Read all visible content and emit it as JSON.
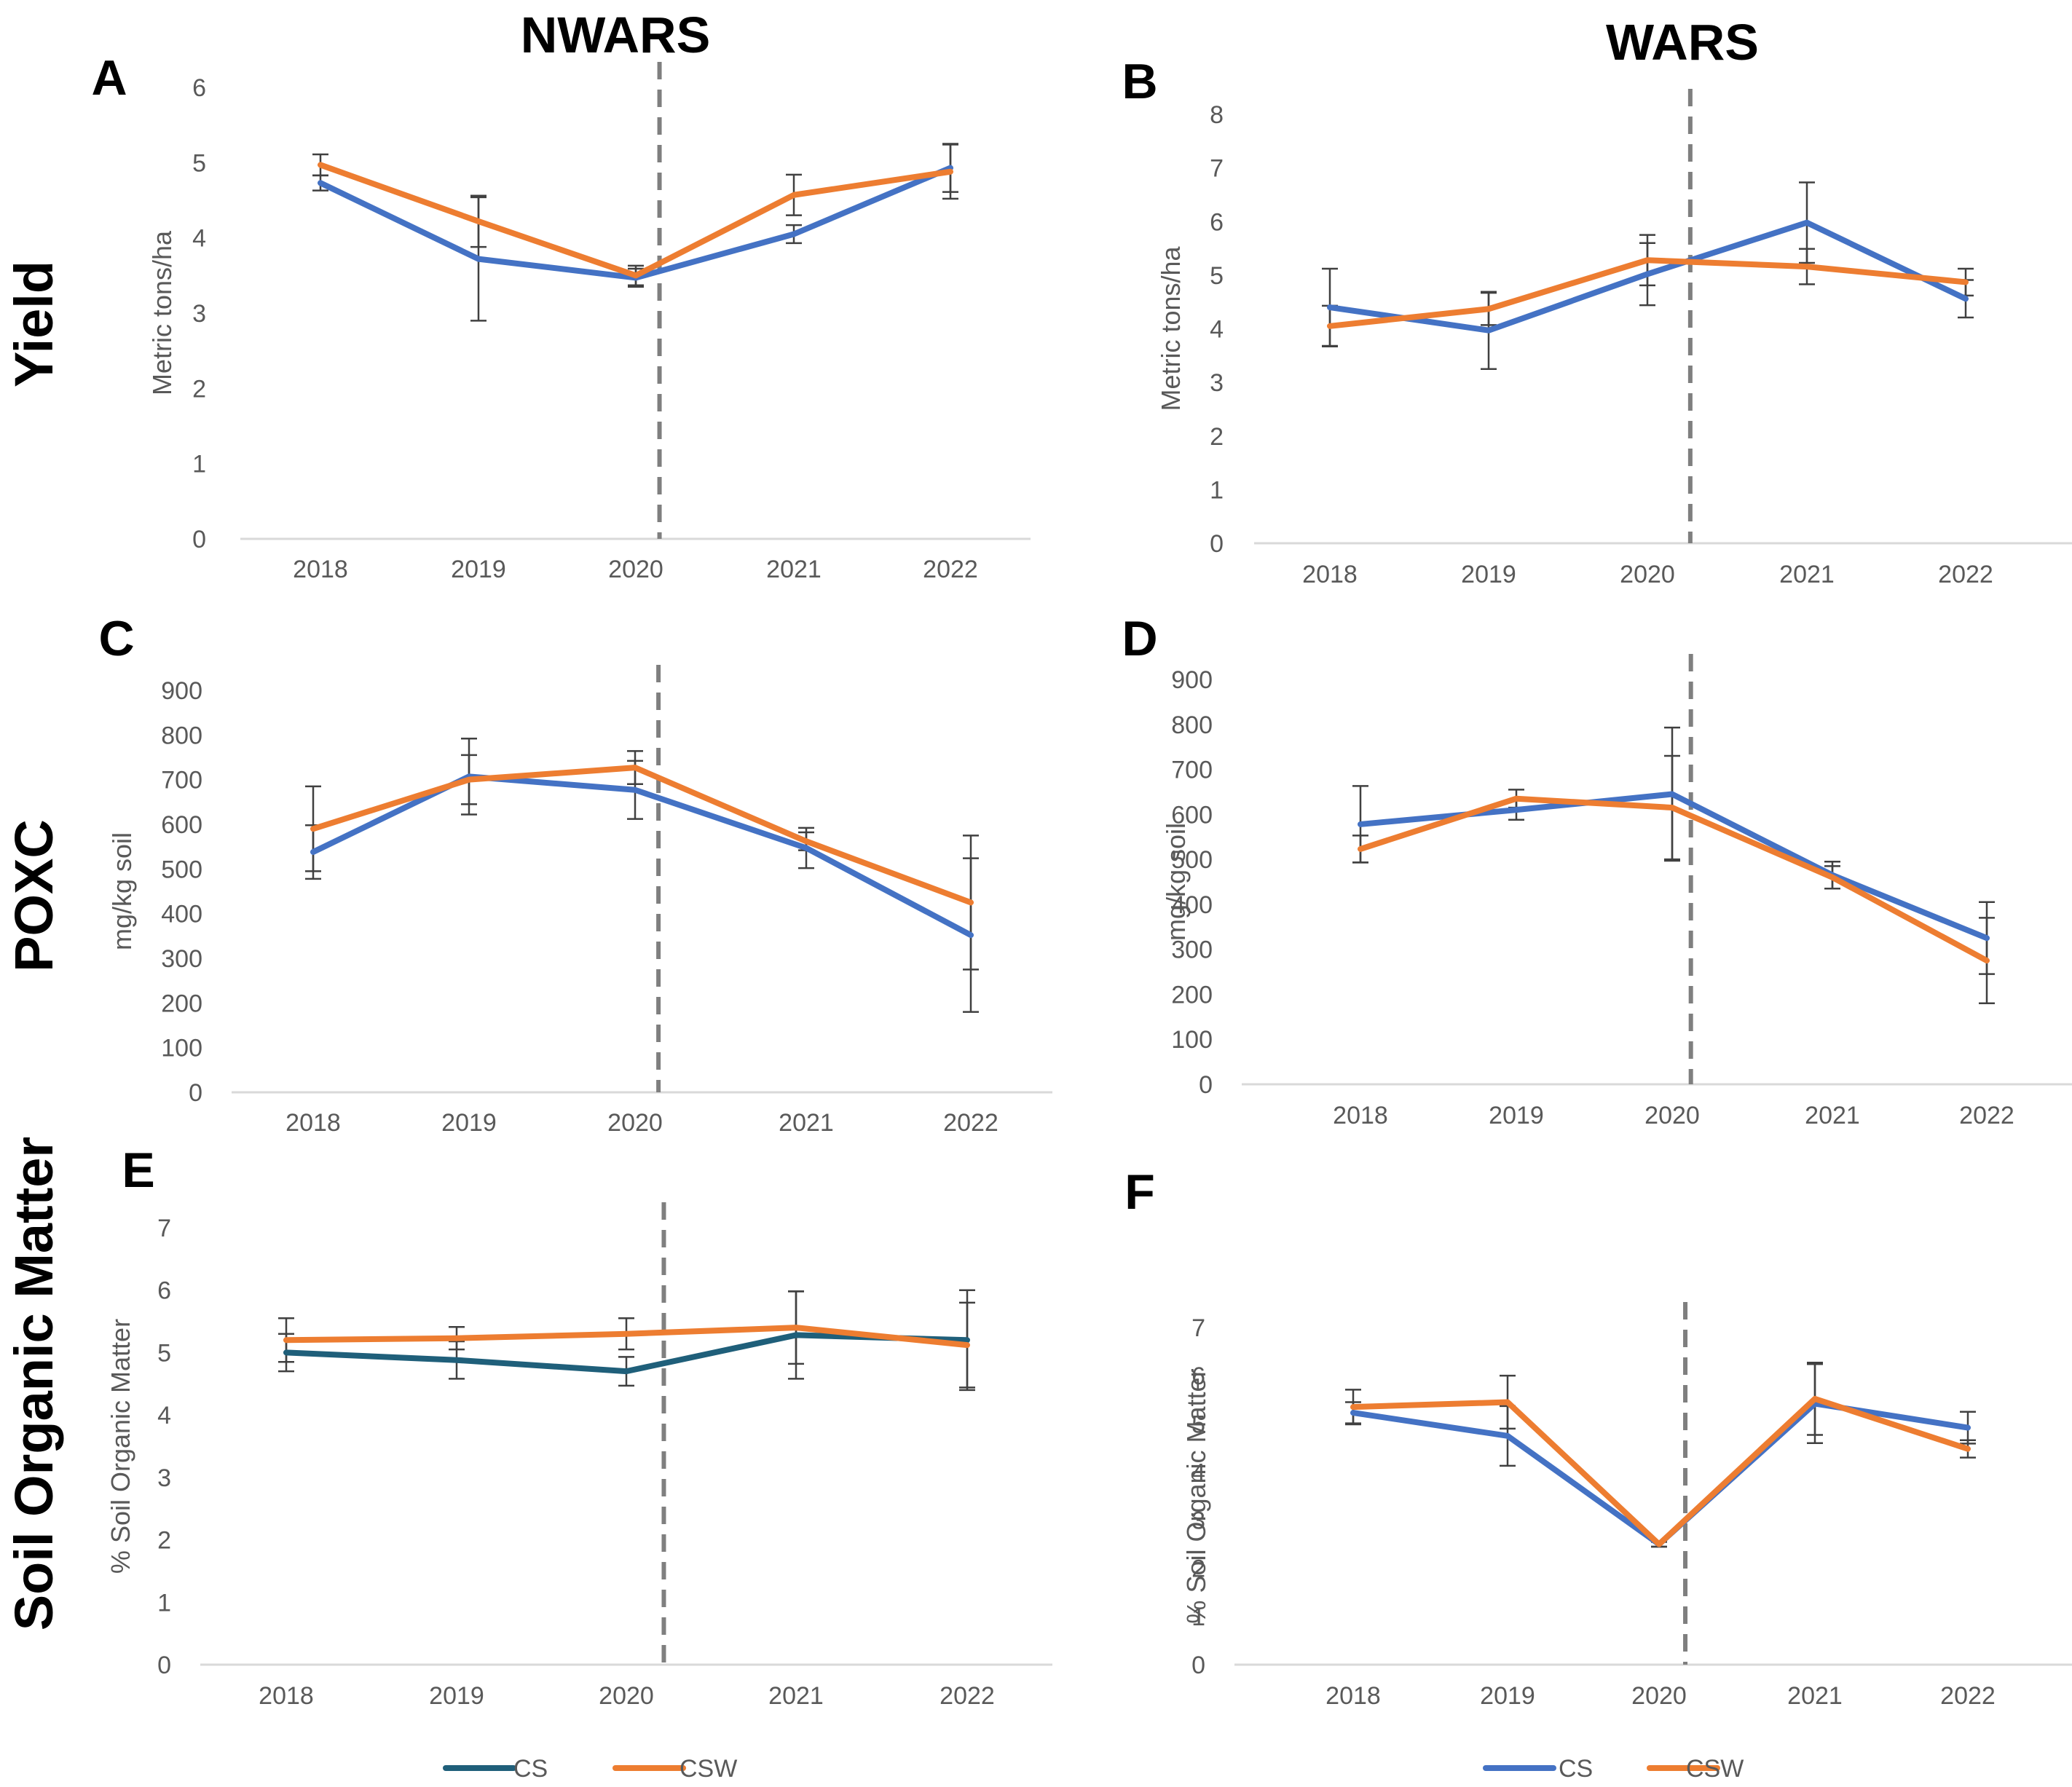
{
  "column_titles": [
    "NWARS",
    "WARS"
  ],
  "row_titles": [
    "Yield",
    "POXC",
    "Soil Organic Matter"
  ],
  "colors": {
    "CS": "#4472C4",
    "CS_dark": "#1F5F7A",
    "CSW": "#ED7D31",
    "axis": "#D9D9D9",
    "dash": "#7F7F7F",
    "error": "#404040"
  },
  "legends": [
    {
      "items": [
        "CS",
        "CSW"
      ]
    },
    {
      "items": [
        "CS",
        "CSW"
      ]
    }
  ],
  "chart_data": [
    {
      "id": "A",
      "panel_label": "A",
      "type": "line",
      "ylabel": "Metric tons/ha",
      "ylim": [
        0,
        6
      ],
      "yticks": [
        "0",
        "1",
        "2",
        "3",
        "4",
        "5",
        "6"
      ],
      "categories": [
        "2018",
        "2019",
        "2020",
        "2021",
        "2022"
      ],
      "reference_line_x": 2.15,
      "series": [
        {
          "name": "CS",
          "color": "#4472C4",
          "values": [
            4.73,
            3.72,
            3.47,
            4.05,
            4.93
          ],
          "errors": [
            0.1,
            0.82,
            0.12,
            0.12,
            0.32
          ]
        },
        {
          "name": "CSW",
          "color": "#ED7D31",
          "values": [
            4.97,
            4.22,
            3.5,
            4.57,
            4.88
          ],
          "errors": [
            0.14,
            0.34,
            0.13,
            0.27,
            0.36
          ]
        }
      ]
    },
    {
      "id": "B",
      "panel_label": "B",
      "type": "line",
      "ylabel": "Metric tons/ha",
      "ylim": [
        0,
        8
      ],
      "yticks": [
        "0",
        "1",
        "2",
        "3",
        "4",
        "5",
        "6",
        "7",
        "8"
      ],
      "categories": [
        "2018",
        "2019",
        "2020",
        "2021",
        "2022"
      ],
      "reference_line_x": 2.27,
      "series": [
        {
          "name": "CS",
          "color": "#4472C4",
          "values": [
            4.4,
            3.97,
            5.02,
            5.98,
            4.56
          ],
          "errors": [
            0.72,
            0.72,
            0.58,
            0.75,
            0.35
          ]
        },
        {
          "name": "CSW",
          "color": "#ED7D31",
          "values": [
            4.05,
            4.37,
            5.28,
            5.16,
            4.87
          ],
          "errors": [
            0.38,
            0.3,
            0.47,
            0.33,
            0.25
          ]
        }
      ]
    },
    {
      "id": "C",
      "panel_label": "C",
      "type": "line",
      "ylabel": "mg/kg soil",
      "ylim": [
        0,
        900
      ],
      "yticks": [
        "0",
        "100",
        "200",
        "300",
        "400",
        "500",
        "600",
        "700",
        "800",
        "900"
      ],
      "categories": [
        "2018",
        "2019",
        "2020",
        "2021",
        "2022"
      ],
      "reference_line_x": 2.15,
      "series": [
        {
          "name": "CS",
          "color": "#4472C4",
          "values": [
            538,
            707,
            677,
            547,
            352
          ],
          "errors": [
            60,
            85,
            65,
            45,
            172
          ]
        },
        {
          "name": "CSW",
          "color": "#ED7D31",
          "values": [
            590,
            700,
            727,
            562,
            425
          ],
          "errors": [
            95,
            55,
            37,
            20,
            150
          ]
        }
      ]
    },
    {
      "id": "D",
      "panel_label": "D",
      "type": "line",
      "ylabel": "mg/kg soil",
      "ylim": [
        0,
        900
      ],
      "yticks": [
        "0",
        "100",
        "200",
        "300",
        "400",
        "500",
        "600",
        "700",
        "800",
        "900"
      ],
      "categories": [
        "2018",
        "2019",
        "2020",
        "2021",
        "2022"
      ],
      "reference_line_x": 2.12,
      "series": [
        {
          "name": "CS",
          "color": "#4472C4",
          "values": [
            578,
            610,
            645,
            465,
            325
          ],
          "errors": [
            85,
            22,
            148,
            30,
            80
          ]
        },
        {
          "name": "CSW",
          "color": "#ED7D31",
          "values": [
            523,
            635,
            615,
            460,
            275
          ],
          "errors": [
            30,
            20,
            115,
            25,
            95
          ]
        }
      ]
    },
    {
      "id": "E",
      "panel_label": "E",
      "type": "line",
      "ylabel": "% Soil Organic Matter",
      "ylim": [
        0,
        7
      ],
      "yticks": [
        "0",
        "1",
        "2",
        "3",
        "4",
        "5",
        "6",
        "7"
      ],
      "categories": [
        "2018",
        "2019",
        "2020",
        "2021",
        "2022"
      ],
      "reference_line_x": 2.22,
      "series": [
        {
          "name": "CS",
          "color": "#1F5F7A",
          "values": [
            5.0,
            4.88,
            4.7,
            5.28,
            5.2
          ],
          "errors": [
            0.3,
            0.3,
            0.23,
            0.7,
            0.8
          ]
        },
        {
          "name": "CSW",
          "color": "#ED7D31",
          "values": [
            5.2,
            5.23,
            5.3,
            5.4,
            5.12
          ],
          "errors": [
            0.35,
            0.18,
            0.25,
            0.58,
            0.68
          ]
        }
      ]
    },
    {
      "id": "F",
      "panel_label": "F",
      "type": "line",
      "ylabel": "% Soil Organic Matter",
      "ylim": [
        0,
        7
      ],
      "yticks": [
        "0",
        "1",
        "2",
        "3",
        "4",
        "5",
        "6",
        "7"
      ],
      "categories": [
        "2018",
        "2019",
        "2020",
        "2021",
        "2022"
      ],
      "reference_line_x": 2.17,
      "series": [
        {
          "name": "CS",
          "color": "#4472C4",
          "values": [
            5.23,
            4.75,
            2.5,
            5.42,
            4.92
          ],
          "errors": [
            0.22,
            0.62,
            0.05,
            0.82,
            0.33
          ]
        },
        {
          "name": "CSW",
          "color": "#ED7D31",
          "values": [
            5.35,
            5.45,
            2.5,
            5.52,
            4.48
          ],
          "errors": [
            0.36,
            0.55,
            0.05,
            0.75,
            0.18
          ]
        }
      ]
    }
  ]
}
